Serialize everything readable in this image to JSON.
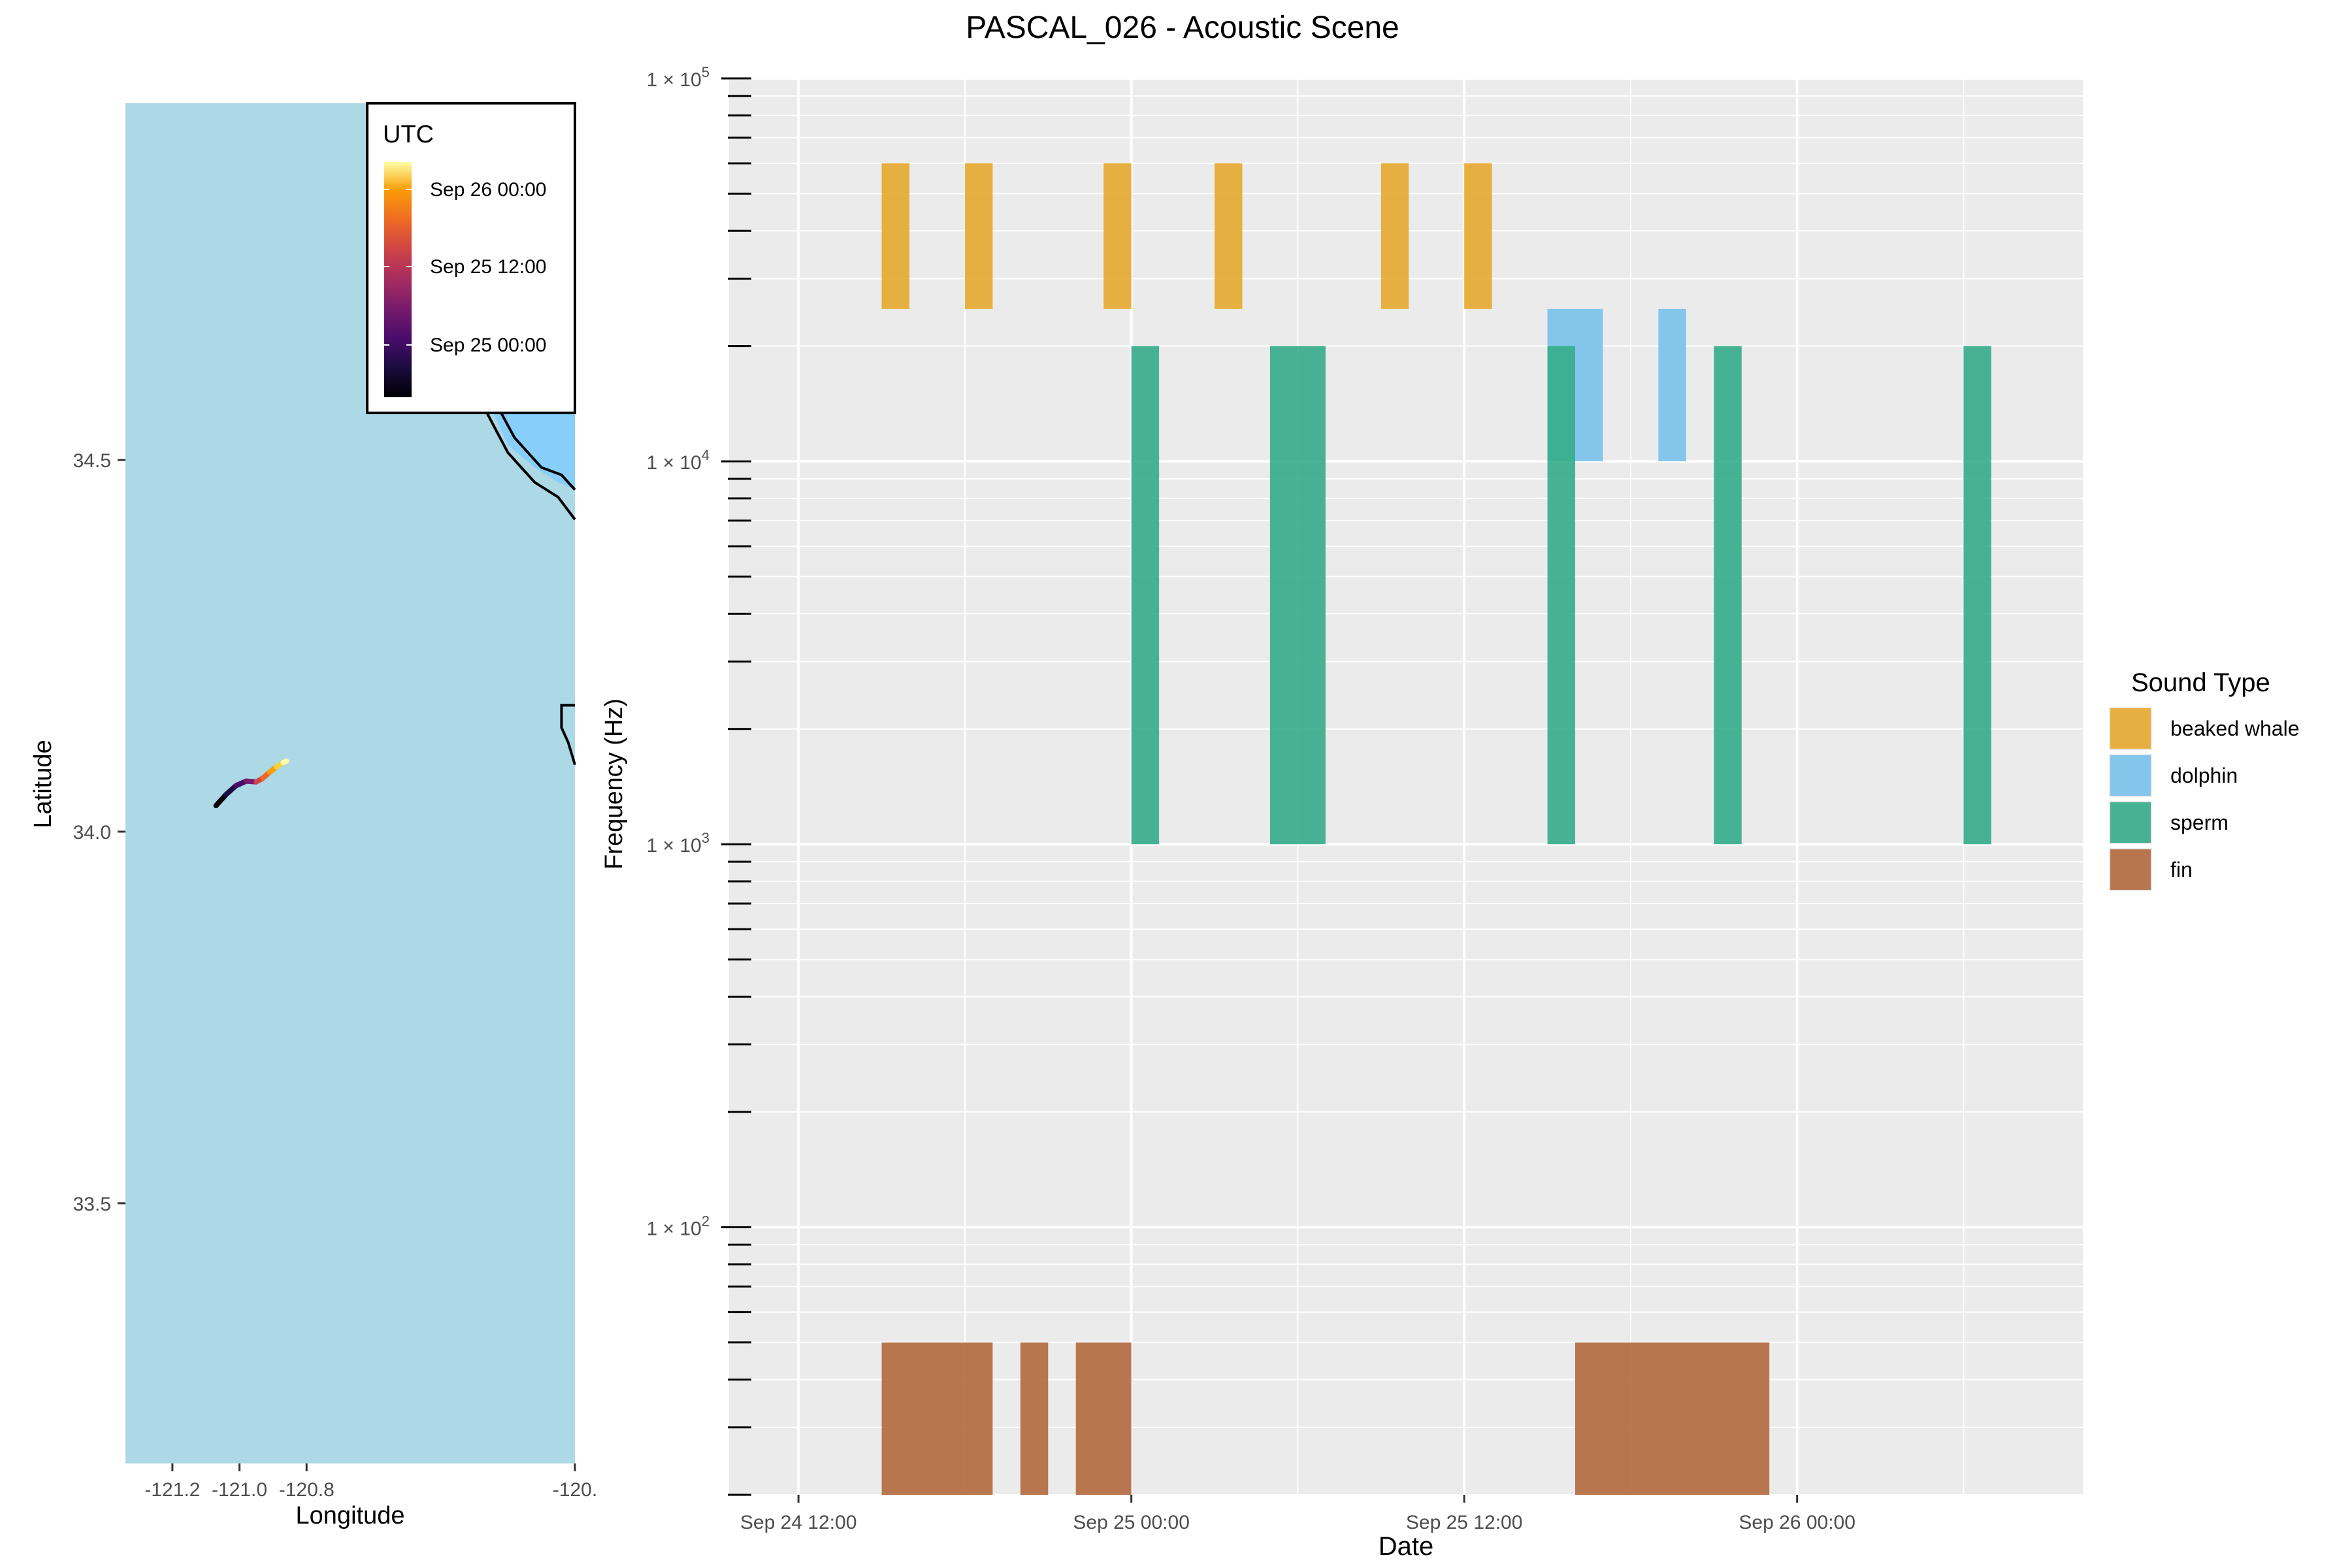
{
  "title": "PASCAL_026 - Acoustic Scene",
  "map": {
    "xlabel": "Longitude",
    "ylabel": "Latitude",
    "lon_range": [
      -121.34,
      -120.0
    ],
    "lat_range": [
      33.15,
      34.98
    ],
    "x_ticks": [
      -121.2,
      -121.0,
      -120.8,
      -120.0
    ],
    "x_tick_labels": [
      "-121.2",
      "-121.0",
      "-120.8",
      "-120."
    ],
    "y_ticks": [
      33.5,
      34.0,
      34.5
    ],
    "y_tick_labels": [
      "33.5",
      "34.0",
      "34.5"
    ],
    "ocean_color": "#add8e6",
    "shallow_color": "#87cefa",
    "coast_color": "#000000",
    "legend": {
      "title": "UTC",
      "labels": [
        "Sep 26 00:00",
        "Sep 25 12:00",
        "Sep 25 00:00"
      ],
      "colormap": "inferno"
    },
    "track": [
      [
        -121.07,
        34.035
      ],
      [
        -121.04,
        34.05
      ],
      [
        -121.01,
        34.062
      ],
      [
        -120.98,
        34.068
      ],
      [
        -120.95,
        34.067
      ],
      [
        -120.93,
        34.072
      ],
      [
        -120.91,
        34.08
      ],
      [
        -120.89,
        34.087
      ],
      [
        -120.87,
        34.093
      ],
      [
        -120.86,
        34.095
      ]
    ]
  },
  "chart_data": {
    "type": "bar",
    "subtype": "time-frequency bands",
    "title": "PASCAL_026 - Acoustic Scene",
    "xlabel": "Date",
    "ylabel": "Frequency (Hz)",
    "y_scale": "log10",
    "ylim": [
      20,
      100000
    ],
    "x_unit": "hours since Sep 24 00:00 UTC",
    "xlim": [
      9.5,
      58.3
    ],
    "x_ticks": [
      12,
      24,
      36,
      48
    ],
    "x_tick_labels": [
      "Sep 24 12:00",
      "Sep 25 00:00",
      "Sep 25 12:00",
      "Sep 26 00:00"
    ],
    "y_tick_labels": [
      "1 × 10^5",
      "1 × 10^4",
      "1 × 10^3",
      "1 × 10^2"
    ],
    "legend_title": "Sound Type",
    "legend_position": "right",
    "series": [
      {
        "name": "beaked whale",
        "color": "#e6a92f",
        "freq_range": [
          25000,
          60000
        ],
        "intervals": [
          [
            15.0,
            16.0
          ],
          [
            18.0,
            19.0
          ],
          [
            23.0,
            24.0
          ],
          [
            27.0,
            28.0
          ],
          [
            33.0,
            34.0
          ],
          [
            36.0,
            37.0
          ]
        ]
      },
      {
        "name": "dolphin",
        "color": "#79c1ec",
        "freq_range": [
          10000,
          25000
        ],
        "intervals": [
          [
            39.0,
            41.0
          ],
          [
            43.0,
            44.0
          ]
        ]
      },
      {
        "name": "sperm",
        "color": "#35ac8a",
        "freq_range": [
          1000,
          20000
        ],
        "intervals": [
          [
            24.0,
            25.0
          ],
          [
            29.0,
            31.0
          ],
          [
            39.0,
            40.0
          ],
          [
            45.0,
            46.0
          ],
          [
            54.0,
            55.0
          ]
        ]
      },
      {
        "name": "fin",
        "color": "#b3693d",
        "freq_range": [
          20,
          50
        ],
        "intervals": [
          [
            15.0,
            19.0
          ],
          [
            20.0,
            21.0
          ],
          [
            22.0,
            24.0
          ],
          [
            40.0,
            47.0
          ]
        ]
      }
    ]
  }
}
